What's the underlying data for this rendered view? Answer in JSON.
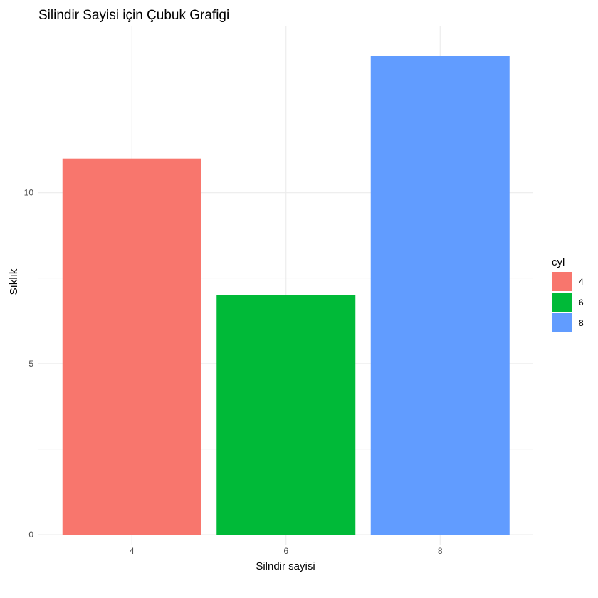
{
  "chart_data": {
    "type": "bar",
    "title": "Silindir Sayisi için Çubuk Grafigi",
    "xlabel": "Silndir sayisi",
    "ylabel": "Sıklık",
    "categories": [
      "4",
      "6",
      "8"
    ],
    "values": [
      11,
      7,
      14
    ],
    "colors": [
      "#F8766D",
      "#00BA38",
      "#619CFF"
    ],
    "ylim": [
      0,
      14.7
    ],
    "yticks": [
      0,
      5,
      10
    ],
    "yticks_minor": [
      2.5,
      7.5,
      12.5
    ],
    "grid": true,
    "legend": {
      "title": "cyl",
      "placement": "right",
      "entries": [
        "4",
        "6",
        "8"
      ]
    }
  }
}
